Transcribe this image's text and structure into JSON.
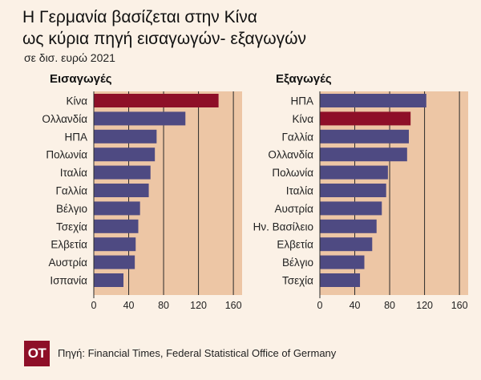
{
  "header": {
    "title_line1": "Η Γερμανία βασίζεται στην Κίνα",
    "title_line2": "ως κύρια πηγή εισαγωγών- εξαγωγών",
    "subtitle": "σε δισ. ευρώ 2021"
  },
  "chart_data": [
    {
      "type": "bar",
      "orientation": "horizontal",
      "title": "Εισαγωγές",
      "categories": [
        "Κίνα",
        "Ολλανδία",
        "ΗΠΑ",
        "Πολωνία",
        "Ιταλία",
        "Γαλλία",
        "Βέλγιο",
        "Τσεχία",
        "Ελβετία",
        "Αυστρία",
        "Ισπανία"
      ],
      "values": [
        143,
        105,
        72,
        70,
        65,
        63,
        53,
        51,
        48,
        47,
        34
      ],
      "highlight": "Κίνα",
      "xlim": [
        0,
        170
      ],
      "ticks": [
        0,
        40,
        80,
        120,
        160
      ],
      "grid": true
    },
    {
      "type": "bar",
      "orientation": "horizontal",
      "title": "Εξαγωγές",
      "categories": [
        "ΗΠΑ",
        "Κίνα",
        "Γαλλία",
        "Ολλανδία",
        "Πολωνία",
        "Ιταλία",
        "Αυστρία",
        "Ην. Βασίλειο",
        "Ελβετία",
        "Βέλγιο",
        "Τσεχία"
      ],
      "values": [
        122,
        104,
        102,
        100,
        78,
        76,
        71,
        65,
        60,
        51,
        46
      ],
      "highlight": "Κίνα",
      "xlim": [
        0,
        170
      ],
      "ticks": [
        0,
        40,
        80,
        120,
        160
      ],
      "grid": true
    }
  ],
  "colors": {
    "background": "#FBF1E6",
    "plot_background": "#EDC6A5",
    "bar": "#4E4A82",
    "highlight": "#8E0F28",
    "gridline": "#2a2a2a",
    "logo": "#8E0F28"
  },
  "footer": {
    "logo_text": "ΟΤ",
    "source": "Πηγή: Financial Times, Federal Statistical Office of Germany"
  }
}
